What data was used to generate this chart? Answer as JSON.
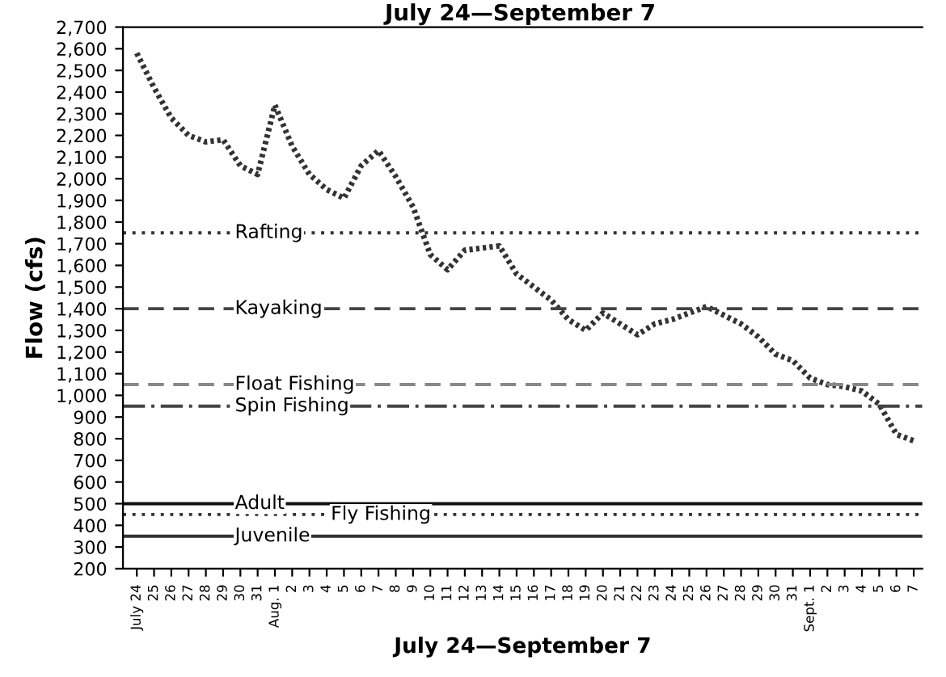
{
  "chart_data": {
    "type": "line",
    "title": "July 24—September 7",
    "xlabel": "July 24—September 7",
    "ylabel": "Flow (cfs)",
    "categories": [
      "July 24",
      "25",
      "26",
      "27",
      "28",
      "29",
      "30",
      "31",
      "Aug. 1",
      "2",
      "3",
      "4",
      "5",
      "6",
      "7",
      "8",
      "9",
      "10",
      "11",
      "12",
      "13",
      "14",
      "15",
      "16",
      "17",
      "18",
      "19",
      "20",
      "21",
      "22",
      "23",
      "24",
      "25",
      "26",
      "27",
      "28",
      "29",
      "30",
      "31",
      "Sept. 1",
      "2",
      "3",
      "4",
      "5",
      "6",
      "7"
    ],
    "series": [
      {
        "color": "#333333",
        "values": [
          2580,
          2420,
          2280,
          2200,
          2170,
          2180,
          2060,
          2020,
          2340,
          2150,
          2020,
          1950,
          1910,
          2060,
          2130,
          2010,
          1870,
          1650,
          1580,
          1670,
          1680,
          1690,
          1560,
          1500,
          1440,
          1350,
          1300,
          1380,
          1330,
          1280,
          1330,
          1350,
          1380,
          1410,
          1370,
          1330,
          1270,
          1190,
          1160,
          1080,
          1050,
          1040,
          1020,
          960,
          820,
          790
        ]
      }
    ],
    "line_style": "dotted",
    "ylim": [
      200,
      2700
    ],
    "yticks": [
      {
        "value": 200,
        "label": "200"
      },
      {
        "value": 300,
        "label": "300"
      },
      {
        "value": 400,
        "label": "400"
      },
      {
        "value": 500,
        "label": "500"
      },
      {
        "value": 600,
        "label": "600"
      },
      {
        "value": 700,
        "label": "700"
      },
      {
        "value": 800,
        "label": "800"
      },
      {
        "value": 900,
        "label": "900"
      },
      {
        "value": 1000,
        "label": "1,000"
      },
      {
        "value": 1100,
        "label": "1,100"
      },
      {
        "value": 1200,
        "label": "1,200"
      },
      {
        "value": 1300,
        "label": "1,300"
      },
      {
        "value": 1400,
        "label": "1,400"
      },
      {
        "value": 1500,
        "label": "1,500"
      },
      {
        "value": 1600,
        "label": "1,600"
      },
      {
        "value": 1700,
        "label": "1,700"
      },
      {
        "value": 1800,
        "label": "1,800"
      },
      {
        "value": 1900,
        "label": "1,900"
      },
      {
        "value": 2000,
        "label": "2,000"
      },
      {
        "value": 2100,
        "label": "2,100"
      },
      {
        "value": 2200,
        "label": "2,200"
      },
      {
        "value": 2300,
        "label": "2,300"
      },
      {
        "value": 2400,
        "label": "2,400"
      },
      {
        "value": 2500,
        "label": "2,500"
      },
      {
        "value": 2600,
        "label": "2,600"
      },
      {
        "value": 2700,
        "label": "2,700"
      }
    ],
    "ref_lines": [
      {
        "axis": "y",
        "value": 1750,
        "label": "Rafting",
        "color": "#333333",
        "line_style": "dotted"
      },
      {
        "axis": "y",
        "value": 1400,
        "label": "Kayaking",
        "color": "#444444",
        "line_style": "dashed"
      },
      {
        "axis": "y",
        "value": 1050,
        "label": "Float Fishing",
        "color": "#888888",
        "line_style": "dashed"
      },
      {
        "axis": "y",
        "value": 950,
        "label": "Spin Fishing",
        "color": "#444444",
        "line_style": "dashdot"
      },
      {
        "axis": "y",
        "value": 500,
        "label": "Adult",
        "color": "#111111",
        "line_style": "solid"
      },
      {
        "axis": "y",
        "value": 450,
        "label": "Fly Fishing",
        "color": "#333333",
        "line_style": "dotted"
      },
      {
        "axis": "y",
        "value": 350,
        "label": "Juvenile",
        "color": "#333333",
        "line_style": "solid"
      }
    ],
    "grid": false,
    "legend": false
  }
}
